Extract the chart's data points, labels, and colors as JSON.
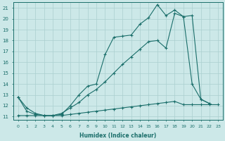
{
  "xlabel": "Humidex (Indice chaleur)",
  "bg_color": "#cce8e8",
  "grid_color": "#aacfcf",
  "line_color": "#1a6e6a",
  "xlim": [
    -0.5,
    23.5
  ],
  "ylim": [
    10.7,
    21.5
  ],
  "xticks": [
    0,
    1,
    2,
    3,
    4,
    5,
    6,
    7,
    8,
    9,
    10,
    11,
    12,
    13,
    14,
    15,
    16,
    17,
    18,
    19,
    20,
    21,
    22,
    23
  ],
  "yticks": [
    11,
    12,
    13,
    14,
    15,
    16,
    17,
    18,
    19,
    20,
    21
  ],
  "line1_x": [
    0,
    1,
    2,
    3,
    4,
    5,
    6,
    7,
    8,
    9,
    10,
    11,
    12,
    13,
    14,
    15,
    16,
    17,
    18,
    19,
    20,
    21,
    22,
    23
  ],
  "line1_y": [
    11.1,
    11.1,
    11.1,
    11.1,
    11.1,
    11.1,
    11.2,
    11.3,
    11.4,
    11.5,
    11.6,
    11.7,
    11.8,
    11.9,
    12.0,
    12.1,
    12.2,
    12.3,
    12.4,
    12.1,
    12.1,
    12.1,
    12.1,
    12.1
  ],
  "line2_x": [
    0,
    1,
    2,
    3,
    4,
    5,
    6,
    7,
    8,
    9,
    10,
    11,
    12,
    13,
    14,
    15,
    16,
    17,
    18,
    19,
    20,
    21,
    22
  ],
  "line2_y": [
    12.8,
    11.8,
    11.3,
    11.1,
    11.1,
    11.2,
    12.0,
    13.0,
    13.8,
    14.0,
    16.7,
    18.3,
    18.4,
    18.5,
    19.5,
    20.1,
    21.3,
    20.3,
    20.8,
    20.2,
    14.0,
    12.6,
    12.2
  ],
  "line3_x": [
    0,
    1,
    2,
    3,
    4,
    5,
    6,
    7,
    8,
    9,
    10,
    11,
    12,
    13,
    14,
    15,
    16,
    17,
    18,
    19,
    20,
    21,
    22,
    23
  ],
  "line3_y": [
    12.8,
    11.5,
    11.2,
    11.1,
    11.1,
    11.3,
    11.8,
    12.3,
    13.0,
    13.5,
    14.2,
    15.0,
    15.8,
    16.5,
    17.2,
    17.9,
    18.0,
    17.3,
    20.5,
    20.2,
    20.3,
    12.6,
    12.2,
    null
  ]
}
